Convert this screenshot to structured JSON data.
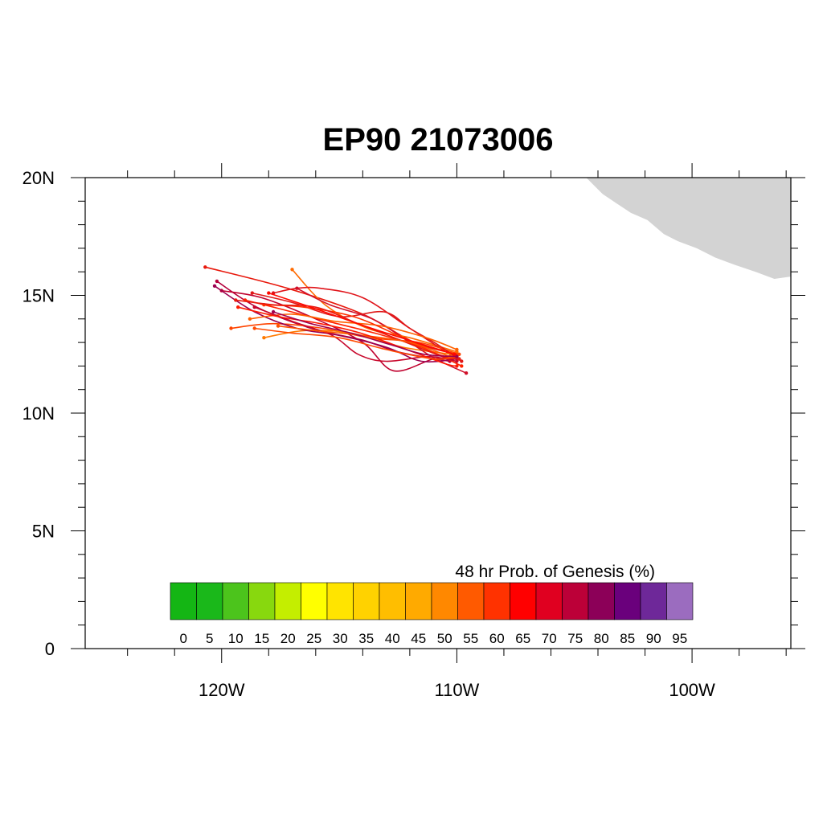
{
  "title": "EP90 21073006",
  "chart_data": {
    "type": "line",
    "title": "EP90 21073006",
    "xlim": [
      -125.8,
      -95.8
    ],
    "ylim": [
      0,
      20
    ],
    "x_tick_labels": [
      "120W",
      "110W",
      "100W"
    ],
    "x_tick_values": [
      -120,
      -110,
      -100
    ],
    "y_tick_labels": [
      "0",
      "5N",
      "10N",
      "15N",
      "20N"
    ],
    "y_tick_values": [
      0,
      5,
      10,
      15,
      20
    ],
    "land_fill": "#d3d3d3",
    "land_outline": [
      [
        -104.5,
        20
      ],
      [
        -103.8,
        19.3
      ],
      [
        -103.2,
        18.9
      ],
      [
        -102.6,
        18.5
      ],
      [
        -101.9,
        18.2
      ],
      [
        -101.2,
        17.6
      ],
      [
        -100.6,
        17.3
      ],
      [
        -99.8,
        17.0
      ],
      [
        -99.0,
        16.6
      ],
      [
        -98.2,
        16.3
      ],
      [
        -97.3,
        16.0
      ],
      [
        -96.5,
        15.7
      ],
      [
        -95.8,
        15.8
      ],
      [
        -95.8,
        20
      ]
    ],
    "colorbar": {
      "title": "48 hr Prob. of Genesis (%)",
      "labels": [
        "0",
        "5",
        "10",
        "15",
        "20",
        "25",
        "30",
        "35",
        "40",
        "45",
        "50",
        "55",
        "60",
        "65",
        "70",
        "75",
        "80",
        "85",
        "90",
        "95"
      ],
      "colors": [
        "#14b614",
        "#1ab81a",
        "#4cc41c",
        "#88d80e",
        "#c4ee00",
        "#ffff00",
        "#ffe400",
        "#ffd200",
        "#ffbe00",
        "#ffaa00",
        "#ff8800",
        "#ff5a00",
        "#ff3200",
        "#ff0000",
        "#e00020",
        "#bc0038",
        "#8c0058",
        "#6a007c",
        "#6e2899",
        "#9b6cbf"
      ]
    },
    "series": [
      {
        "color": "#e8180c",
        "points": [
          [
            -120.7,
            16.2
          ],
          [
            -117.2,
            15.3
          ],
          [
            -114.0,
            14.2
          ],
          [
            -111.8,
            13.0
          ],
          [
            -110.0,
            12.5
          ]
        ]
      },
      {
        "color": "#ff6a00",
        "points": [
          [
            -117.0,
            16.1
          ],
          [
            -115.6,
            14.6
          ],
          [
            -113.8,
            13.6
          ],
          [
            -112.0,
            13.2
          ],
          [
            -110.0,
            12.6
          ]
        ]
      },
      {
        "color": "#e0141a",
        "points": [
          [
            -117.8,
            15.1
          ],
          [
            -116.8,
            15.3
          ],
          [
            -115.8,
            15.3
          ],
          [
            -114.0,
            14.9
          ],
          [
            -112.0,
            13.6
          ],
          [
            -110.0,
            12.3
          ]
        ]
      },
      {
        "color": "#b4003c",
        "points": [
          [
            -120.2,
            15.6
          ],
          [
            -118.5,
            14.5
          ],
          [
            -116.2,
            13.6
          ],
          [
            -114.0,
            13.1
          ],
          [
            -112.5,
            12.6
          ],
          [
            -110.3,
            12.2
          ]
        ]
      },
      {
        "color": "#c0002e",
        "points": [
          [
            -120.0,
            15.2
          ],
          [
            -118.3,
            14.9
          ],
          [
            -116.0,
            14.0
          ],
          [
            -114.0,
            13.0
          ],
          [
            -112.7,
            11.8
          ],
          [
            -111.0,
            12.3
          ],
          [
            -110.2,
            12.3
          ]
        ]
      },
      {
        "color": "#ff4400",
        "points": [
          [
            -119.6,
            13.6
          ],
          [
            -117.8,
            13.8
          ],
          [
            -115.7,
            13.6
          ],
          [
            -113.7,
            13.2
          ],
          [
            -111.6,
            13.0
          ],
          [
            -109.9,
            12.5
          ]
        ]
      },
      {
        "color": "#ff7a00",
        "points": [
          [
            -118.2,
            13.2
          ],
          [
            -116.5,
            13.5
          ],
          [
            -114.5,
            13.4
          ],
          [
            -112.3,
            12.8
          ],
          [
            -110.2,
            12.5
          ]
        ]
      },
      {
        "color": "#e01818",
        "points": [
          [
            -118.7,
            15.1
          ],
          [
            -117.0,
            14.7
          ],
          [
            -115.0,
            14.1
          ],
          [
            -113.1,
            14.3
          ],
          [
            -112.0,
            13.6
          ],
          [
            -110.8,
            12.9
          ],
          [
            -109.8,
            12.2
          ]
        ]
      },
      {
        "color": "#d0102a",
        "points": [
          [
            -116.8,
            15.3
          ],
          [
            -115.4,
            14.6
          ],
          [
            -113.6,
            14.0
          ],
          [
            -112.0,
            13.0
          ],
          [
            -110.9,
            12.3
          ],
          [
            -109.6,
            11.7
          ]
        ]
      },
      {
        "color": "#9a0050",
        "points": [
          [
            -120.3,
            15.4
          ],
          [
            -118.6,
            14.3
          ],
          [
            -116.8,
            13.6
          ],
          [
            -115.0,
            13.3
          ],
          [
            -113.0,
            12.8
          ],
          [
            -111.5,
            12.2
          ],
          [
            -110.0,
            12.3
          ]
        ]
      },
      {
        "color": "#ff2200",
        "points": [
          [
            -119.0,
            14.8
          ],
          [
            -117.4,
            14.4
          ],
          [
            -115.5,
            13.9
          ],
          [
            -113.5,
            13.4
          ],
          [
            -111.5,
            12.8
          ],
          [
            -109.8,
            12.0
          ]
        ]
      },
      {
        "color": "#ff6000",
        "points": [
          [
            -118.8,
            14.0
          ],
          [
            -117.0,
            14.2
          ],
          [
            -115.2,
            13.9
          ],
          [
            -113.2,
            13.7
          ],
          [
            -111.3,
            13.2
          ],
          [
            -110.0,
            12.7
          ]
        ]
      },
      {
        "color": "#c8082c",
        "points": [
          [
            -118.6,
            14.5
          ],
          [
            -117.0,
            13.9
          ],
          [
            -115.3,
            13.3
          ],
          [
            -114.2,
            12.5
          ],
          [
            -113.0,
            12.2
          ],
          [
            -111.2,
            12.4
          ],
          [
            -110.0,
            12.2
          ]
        ]
      },
      {
        "color": "#ff3000",
        "points": [
          [
            -118.2,
            14.6
          ],
          [
            -116.5,
            14.5
          ],
          [
            -114.4,
            14.1
          ],
          [
            -112.5,
            13.3
          ],
          [
            -110.8,
            12.5
          ],
          [
            -109.9,
            12.3
          ]
        ]
      },
      {
        "color": "#e81a10",
        "points": [
          [
            -119.4,
            14.8
          ],
          [
            -117.8,
            14.6
          ],
          [
            -116.0,
            14.5
          ],
          [
            -114.2,
            13.8
          ],
          [
            -112.4,
            13.1
          ],
          [
            -110.6,
            12.4
          ],
          [
            -109.9,
            12.3
          ]
        ]
      },
      {
        "color": "#ff5400",
        "points": [
          [
            -117.6,
            13.7
          ],
          [
            -116.0,
            13.5
          ],
          [
            -114.0,
            13.3
          ],
          [
            -112.0,
            13.0
          ],
          [
            -110.3,
            12.4
          ]
        ]
      },
      {
        "color": "#ff0800",
        "points": [
          [
            -118.0,
            15.1
          ],
          [
            -116.2,
            14.5
          ],
          [
            -114.5,
            13.9
          ],
          [
            -113.0,
            13.4
          ],
          [
            -111.4,
            12.9
          ],
          [
            -110.1,
            12.5
          ]
        ]
      },
      {
        "color": "#ff1a00",
        "points": [
          [
            -119.3,
            14.5
          ],
          [
            -117.6,
            14.1
          ],
          [
            -115.8,
            13.8
          ],
          [
            -114.1,
            13.4
          ],
          [
            -112.4,
            12.8
          ],
          [
            -110.5,
            12.1
          ],
          [
            -110.0,
            12.0
          ]
        ]
      },
      {
        "color": "#ff4a00",
        "points": [
          [
            -118.6,
            13.6
          ],
          [
            -117.0,
            13.4
          ],
          [
            -115.0,
            13.2
          ],
          [
            -113.0,
            12.7
          ],
          [
            -111.0,
            12.3
          ],
          [
            -110.0,
            12.4
          ]
        ]
      },
      {
        "color": "#a0004c",
        "points": [
          [
            -117.8,
            14.3
          ],
          [
            -116.2,
            13.8
          ],
          [
            -114.5,
            13.4
          ],
          [
            -112.8,
            12.9
          ],
          [
            -111.4,
            12.5
          ],
          [
            -110.0,
            12.4
          ]
        ]
      }
    ]
  }
}
